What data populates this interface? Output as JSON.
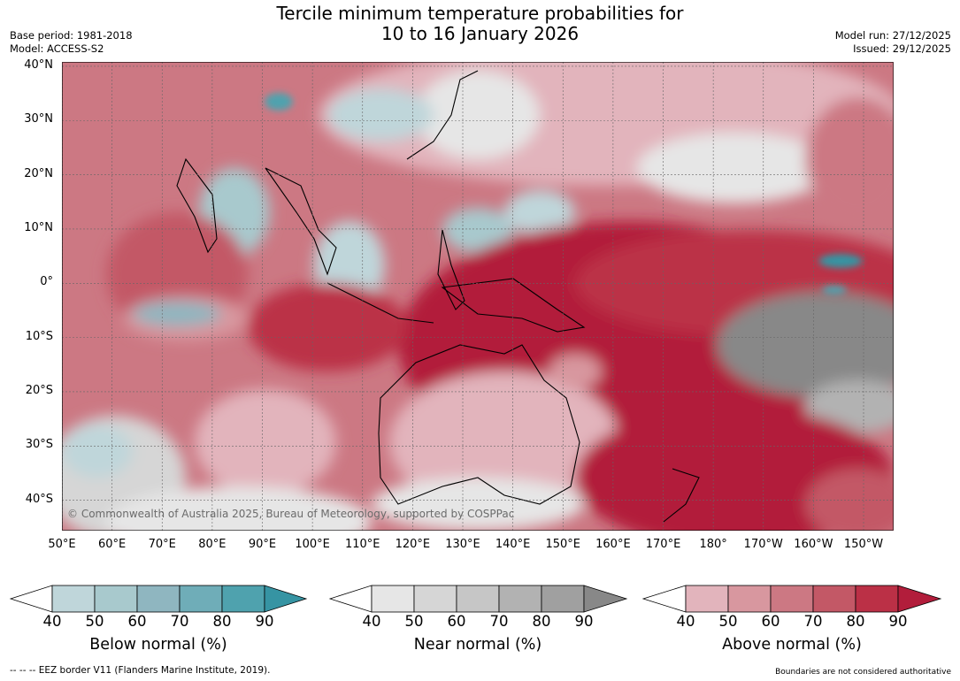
{
  "header": {
    "title_line1": "Tercile minimum temperature probabilities for",
    "title_line2": "10 to 16 January 2026",
    "base_period": "Base period: 1981-2018",
    "model": "Model: ACCESS-S2",
    "model_run": "Model run: 27/12/2025",
    "issued": "Issued: 29/12/2025"
  },
  "map": {
    "copyright": "© Commonwealth of Australia 2025, Bureau of Meteorology, supported by COSPPac",
    "lat_labels": [
      "40°N",
      "30°N",
      "20°N",
      "10°N",
      "0°",
      "10°S",
      "20°S",
      "30°S",
      "40°S"
    ],
    "lat_values": [
      40,
      30,
      20,
      10,
      0,
      -10,
      -20,
      -30,
      -40
    ],
    "lon_labels": [
      "50°E",
      "60°E",
      "70°E",
      "80°E",
      "90°E",
      "100°E",
      "110°E",
      "120°E",
      "130°E",
      "140°E",
      "150°E",
      "160°E",
      "170°E",
      "180°",
      "170°W",
      "160°W",
      "150°W"
    ],
    "lon_values": [
      50,
      60,
      70,
      80,
      90,
      100,
      110,
      120,
      130,
      140,
      150,
      160,
      170,
      180,
      190,
      200,
      210
    ],
    "lon_range": [
      50,
      216
    ],
    "lat_range": [
      -45.6,
      40.8
    ],
    "gridlines": true
  },
  "colorbars": [
    {
      "title": "Below normal (%)",
      "ticks": [
        "40",
        "50",
        "60",
        "70",
        "80",
        "90"
      ],
      "colors": [
        "#bfd6da",
        "#a8c9cd",
        "#8fb6c0",
        "#6fadb8",
        "#4fa2ae",
        "#3694a3"
      ]
    },
    {
      "title": "Near normal (%)",
      "ticks": [
        "40",
        "50",
        "60",
        "70",
        "80",
        "90"
      ],
      "colors": [
        "#e6e6e6",
        "#d6d6d6",
        "#c6c6c6",
        "#b2b2b2",
        "#a0a0a0",
        "#888888"
      ]
    },
    {
      "title": "Above normal (%)",
      "ticks": [
        "40",
        "50",
        "60",
        "70",
        "80",
        "90"
      ],
      "colors": [
        "#e2b4bc",
        "#d8979f",
        "#cc7883",
        "#c35866",
        "#bb3046",
        "#b21d3b"
      ]
    }
  ],
  "footer": {
    "eez": "--  --  -- EEZ border V11 (Flanders Marine Institute, 2019).",
    "disclaimer": "Boundaries are not considered authoritative"
  }
}
